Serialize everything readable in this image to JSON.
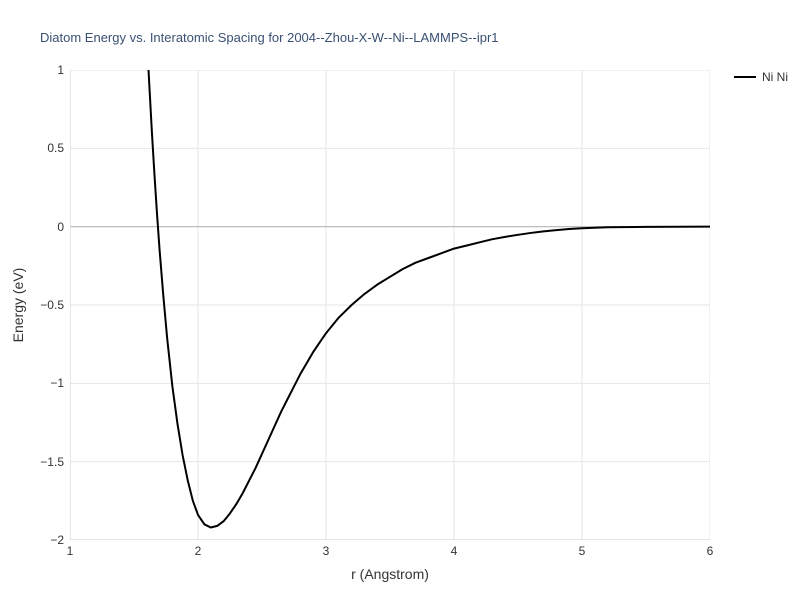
{
  "chart": {
    "type": "line",
    "title": "Diatom Energy vs. Interatomic Spacing for 2004--Zhou-X-W--Ni--LAMMPS--ipr1",
    "title_color": "#3a5173",
    "title_fontsize": 13,
    "xlabel": "r (Angstrom)",
    "ylabel": "Energy (eV)",
    "label_fontsize": 14,
    "label_color": "#333333",
    "tick_fontsize": 12,
    "tick_color": "#333333",
    "xlim": [
      1,
      6
    ],
    "ylim": [
      -2,
      1
    ],
    "xticks": [
      1,
      2,
      3,
      4,
      5,
      6
    ],
    "yticks": [
      -2,
      -1.5,
      -1,
      -0.5,
      0,
      0.5,
      1
    ],
    "ytick_labels": [
      "−2",
      "−1.5",
      "−1",
      "−0.5",
      "0",
      "0.5",
      "1"
    ],
    "background_color": "#ffffff",
    "grid_color": "#e6e6e6",
    "zero_line_color": "#b8b8b8",
    "axis_line_color": "#cccccc",
    "line_width": 2,
    "series": [
      {
        "name": "Ni Ni",
        "color": "#000000",
        "data": [
          [
            1.6,
            1.2
          ],
          [
            1.62,
            0.9
          ],
          [
            1.64,
            0.6
          ],
          [
            1.66,
            0.33
          ],
          [
            1.68,
            0.08
          ],
          [
            1.7,
            -0.15
          ],
          [
            1.73,
            -0.45
          ],
          [
            1.76,
            -0.72
          ],
          [
            1.8,
            -1.02
          ],
          [
            1.84,
            -1.26
          ],
          [
            1.88,
            -1.46
          ],
          [
            1.92,
            -1.62
          ],
          [
            1.96,
            -1.75
          ],
          [
            2.0,
            -1.84
          ],
          [
            2.05,
            -1.9
          ],
          [
            2.1,
            -1.92
          ],
          [
            2.15,
            -1.91
          ],
          [
            2.2,
            -1.88
          ],
          [
            2.25,
            -1.83
          ],
          [
            2.3,
            -1.77
          ],
          [
            2.35,
            -1.7
          ],
          [
            2.4,
            -1.62
          ],
          [
            2.45,
            -1.54
          ],
          [
            2.5,
            -1.45
          ],
          [
            2.55,
            -1.36
          ],
          [
            2.6,
            -1.27
          ],
          [
            2.65,
            -1.18
          ],
          [
            2.7,
            -1.1
          ],
          [
            2.75,
            -1.02
          ],
          [
            2.8,
            -0.94
          ],
          [
            2.85,
            -0.87
          ],
          [
            2.9,
            -0.8
          ],
          [
            2.95,
            -0.74
          ],
          [
            3.0,
            -0.68
          ],
          [
            3.1,
            -0.58
          ],
          [
            3.2,
            -0.5
          ],
          [
            3.3,
            -0.43
          ],
          [
            3.4,
            -0.37
          ],
          [
            3.5,
            -0.32
          ],
          [
            3.6,
            -0.27
          ],
          [
            3.7,
            -0.23
          ],
          [
            3.8,
            -0.2
          ],
          [
            3.9,
            -0.17
          ],
          [
            4.0,
            -0.14
          ],
          [
            4.1,
            -0.12
          ],
          [
            4.2,
            -0.1
          ],
          [
            4.3,
            -0.08
          ],
          [
            4.4,
            -0.065
          ],
          [
            4.5,
            -0.052
          ],
          [
            4.6,
            -0.04
          ],
          [
            4.7,
            -0.03
          ],
          [
            4.8,
            -0.022
          ],
          [
            4.9,
            -0.015
          ],
          [
            5.0,
            -0.01
          ],
          [
            5.2,
            -0.004
          ],
          [
            5.5,
            -0.001
          ],
          [
            6.0,
            0.0
          ]
        ]
      }
    ],
    "legend": {
      "position": "outside_right",
      "fontsize": 12
    }
  }
}
